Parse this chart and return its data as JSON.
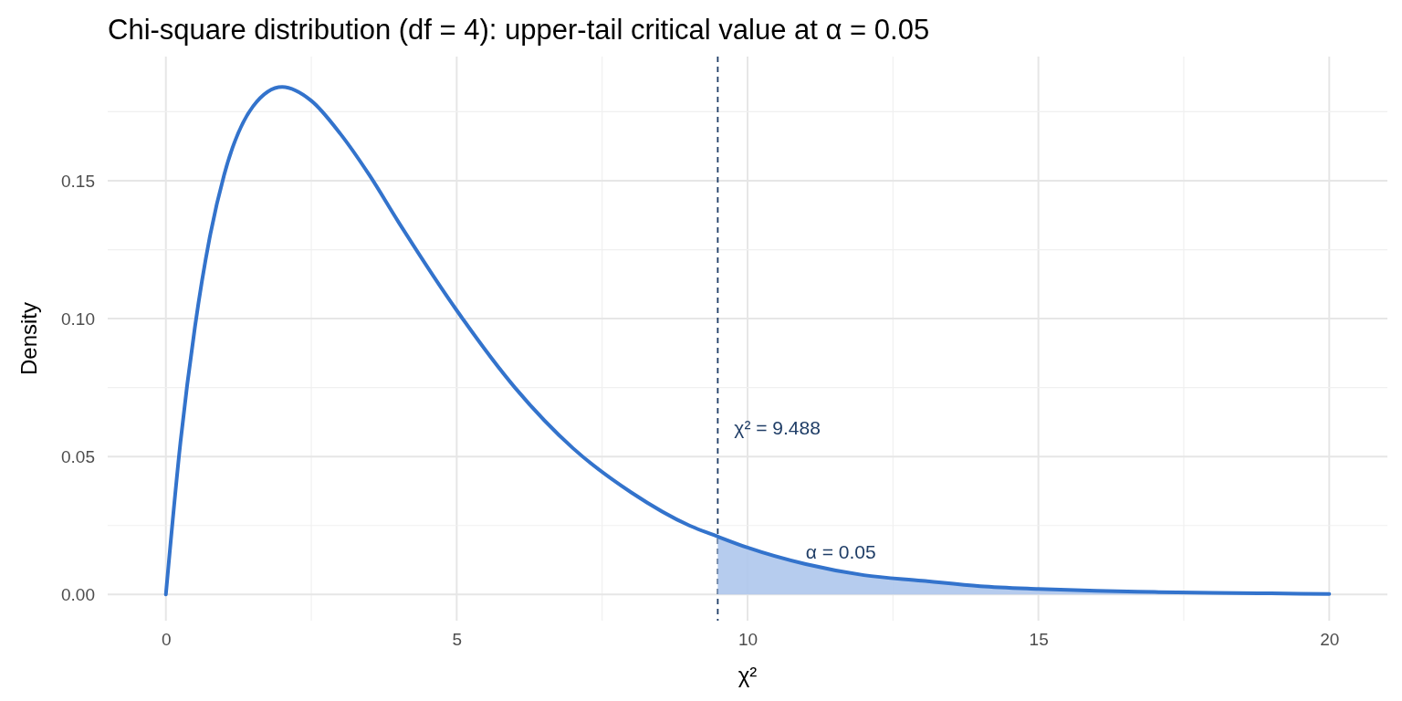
{
  "chart_data": {
    "type": "line",
    "title": "Chi-square distribution (df = 4): upper-tail critical value at α = 0.05",
    "xlabel": "χ²",
    "ylabel": "Density",
    "xlim": [
      -1,
      21
    ],
    "xticks": [
      0,
      {
        "value": 2.5,
        "label": null
      },
      5,
      {
        "value": 7.5,
        "label": null
      },
      10,
      {
        "value": 12.5,
        "label": null
      },
      15,
      {
        "value": 17.5,
        "label": null
      },
      20
    ],
    "ylim": [
      -0.0095,
      0.195
    ],
    "yticks": [
      {
        "value": 0,
        "label": "0.00"
      },
      {
        "value": 0.025,
        "label": null
      },
      {
        "value": 0.05,
        "label": "0.05"
      },
      {
        "value": 0.075,
        "label": null
      },
      {
        "value": 0.1,
        "label": "0.10"
      },
      {
        "value": 0.125,
        "label": null
      },
      {
        "value": 0.15,
        "label": "0.15"
      },
      {
        "value": 0.175,
        "label": null
      }
    ],
    "grid": true,
    "series": [
      {
        "type": "area",
        "color": "#aec6ec",
        "x": [
          9.488,
          10,
          11,
          12,
          13,
          14,
          15,
          16,
          17,
          18,
          19,
          20
        ],
        "values": [
          0.021,
          0.017,
          0.011,
          0.007,
          0.005,
          0.003,
          0.002,
          0.0013,
          0.0009,
          0.0006,
          0.0004,
          0.0002
        ]
      },
      {
        "color": "#3373cc",
        "x": [
          0,
          0.25,
          0.5,
          0.75,
          1,
          1.5,
          2,
          2.5,
          3,
          3.5,
          4,
          5,
          6,
          7,
          8,
          9,
          9.488,
          10,
          11,
          12,
          13,
          14,
          15,
          16,
          17,
          18,
          19,
          20
        ],
        "values": [
          0,
          0.055,
          0.097,
          0.129,
          0.152,
          0.177,
          0.184,
          0.179,
          0.167,
          0.152,
          0.135,
          0.103,
          0.075,
          0.053,
          0.037,
          0.025,
          0.021,
          0.017,
          0.011,
          0.007,
          0.005,
          0.003,
          0.002,
          0.0013,
          0.0009,
          0.0006,
          0.0004,
          0.0002
        ]
      }
    ],
    "ref_lines": [
      {
        "axis": "x",
        "value": 9.488,
        "label": "χ² = 9.488",
        "color": "#1f3d66",
        "line_style": "dashed"
      }
    ],
    "annotations": [
      {
        "text": "α = 0.05",
        "x": 11,
        "y": 0.013
      }
    ]
  }
}
